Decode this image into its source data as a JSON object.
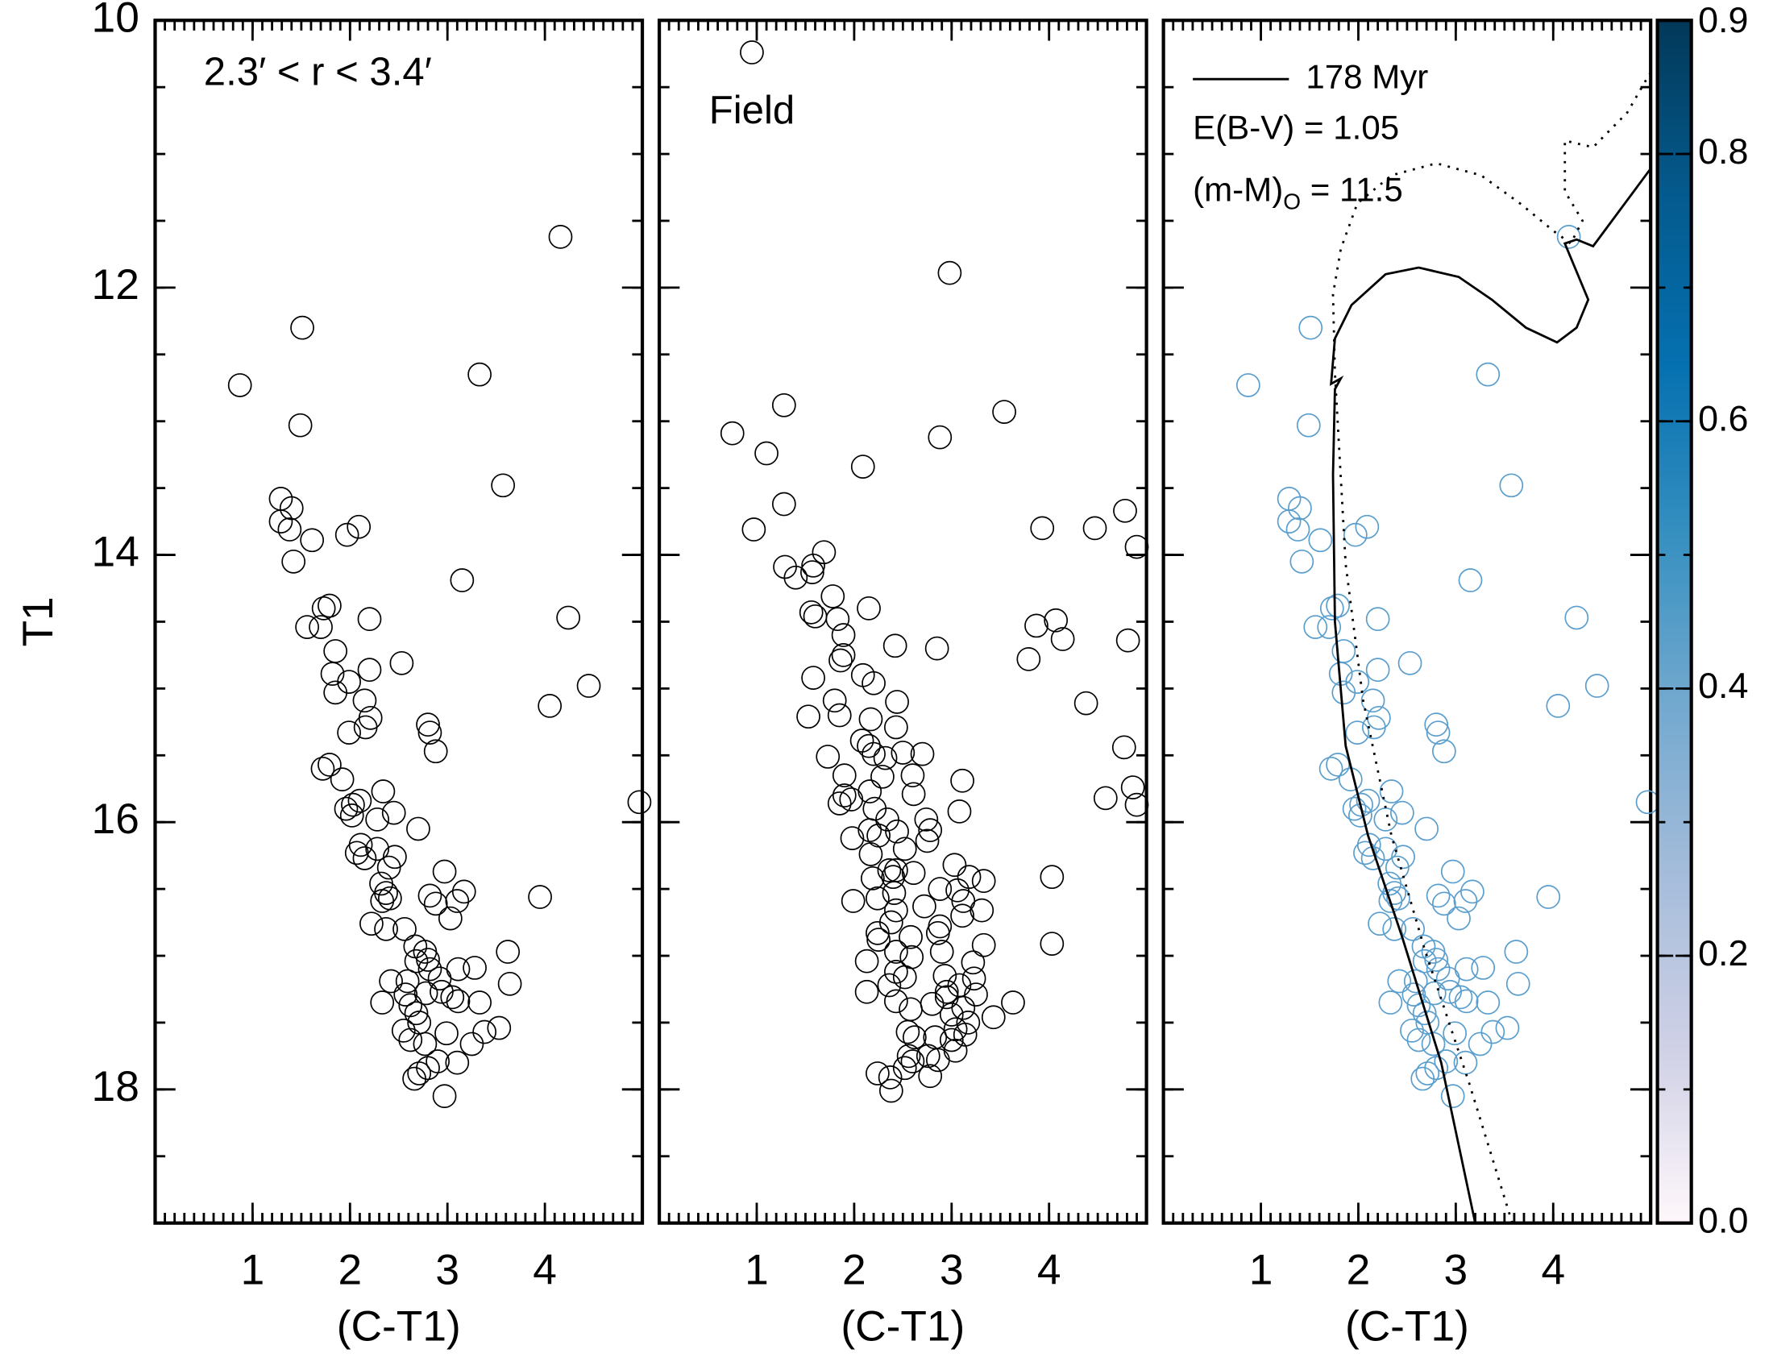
{
  "chart_data": [
    {
      "type": "scatter",
      "label": "2.3′ < r < 3.4′",
      "xlabel": "(C-T1)",
      "ylabel": "T1",
      "xlim": [
        0,
        5
      ],
      "ylim": [
        19,
        10
      ],
      "xticks": [
        1,
        2,
        3,
        4
      ],
      "yticks": [
        10,
        12,
        14,
        16,
        18
      ],
      "xminor": 0.1,
      "yminor": 0.5,
      "color": "#000000",
      "x": [
        0.87,
        1.51,
        1.49,
        1.29,
        1.4,
        1.29,
        1.38,
        1.42,
        1.61,
        2.09,
        1.97,
        1.79,
        1.73,
        1.56,
        1.7,
        2.2,
        1.85,
        1.82,
        1.99,
        1.85,
        2.53,
        2.2,
        2.15,
        2.21,
        2.16,
        1.99,
        2.8,
        2.82,
        2.88,
        1.79,
        1.72,
        1.92,
        2.34,
        2.1,
        2.03,
        1.96,
        2.02,
        2.45,
        2.28,
        2.7,
        2.11,
        2.07,
        2.15,
        2.28,
        2.46,
        2.4,
        2.97,
        2.32,
        2.37,
        2.33,
        2.41,
        2.82,
        3.1,
        3.17,
        3.03,
        2.88,
        2.22,
        2.37,
        2.56,
        2.67,
        2.77,
        2.8,
        2.68,
        2.82,
        3.62,
        3.95,
        3.11,
        3.28,
        2.92,
        2.59,
        2.42,
        2.33,
        2.57,
        2.62,
        2.78,
        3.05,
        3.11,
        3.33,
        3.64,
        2.94,
        2.68,
        2.71,
        2.55,
        2.77,
        2.62,
        2.99,
        3.25,
        3.38,
        3.53,
        2.9,
        3.1,
        2.71,
        2.8,
        2.66,
        2.97,
        3.33,
        3.57,
        4.16,
        3.15,
        4.24,
        4.45,
        4.05,
        4.97
      ],
      "y": [
        12.73,
        12.3,
        13.03,
        13.58,
        13.65,
        13.75,
        13.81,
        14.05,
        13.89,
        13.79,
        13.85,
        14.38,
        14.4,
        14.54,
        14.54,
        14.48,
        14.72,
        14.89,
        14.95,
        15.03,
        14.81,
        14.86,
        15.09,
        15.22,
        15.29,
        15.33,
        15.27,
        15.33,
        15.47,
        15.57,
        15.6,
        15.68,
        15.77,
        15.84,
        15.87,
        15.9,
        15.95,
        15.93,
        15.98,
        16.05,
        16.17,
        16.23,
        16.27,
        16.2,
        16.26,
        16.34,
        16.37,
        16.46,
        16.53,
        16.59,
        16.57,
        16.55,
        16.59,
        16.52,
        16.72,
        16.61,
        16.76,
        16.8,
        16.8,
        16.93,
        16.97,
        17.03,
        17.04,
        17.1,
        16.97,
        16.56,
        17.1,
        17.09,
        17.17,
        17.19,
        17.19,
        17.35,
        17.29,
        17.37,
        17.28,
        17.31,
        17.34,
        17.35,
        17.21,
        17.27,
        17.43,
        17.5,
        17.56,
        17.66,
        17.63,
        17.58,
        17.66,
        17.57,
        17.54,
        17.79,
        17.8,
        17.88,
        17.84,
        17.92,
        18.05,
        12.65,
        13.48,
        11.62,
        14.19,
        14.47,
        14.98,
        15.13,
        15.85
      ]
    },
    {
      "type": "scatter",
      "label": "Field",
      "xlabel": "(C-T1)",
      "xlim": [
        0,
        5
      ],
      "ylim": [
        19,
        10
      ],
      "xticks": [
        1,
        2,
        3,
        4
      ],
      "yticks": [
        10,
        12,
        14,
        16,
        18
      ],
      "xminor": 0.1,
      "yminor": 0.5,
      "color": "#000000",
      "x": [
        0.95,
        2.98,
        0.75,
        1.1,
        1.28,
        3.54,
        2.88,
        2.09,
        1.28,
        0.97,
        1.29,
        1.4,
        1.58,
        1.57,
        1.69,
        1.78,
        1.56,
        1.6,
        1.83,
        2.15,
        2.42,
        1.89,
        1.58,
        1.86,
        1.89,
        2.09,
        2.2,
        1.8,
        1.53,
        1.85,
        2.44,
        2.85,
        2.17,
        2.43,
        2.08,
        2.15,
        2.2,
        2.5,
        2.7,
        1.9,
        1.73,
        2.32,
        2.29,
        2.6,
        3.11,
        2.61,
        1.9,
        1.97,
        1.85,
        2.16,
        2.21,
        2.34,
        2.16,
        1.98,
        2.25,
        2.74,
        2.78,
        2.75,
        3.08,
        2.44,
        2.52,
        2.17,
        2.4,
        2.19,
        2.41,
        2.61,
        2.36,
        2.43,
        3.03,
        3.18,
        3.33,
        3.06,
        1.99,
        2.24,
        2.43,
        2.88,
        3.12,
        3.31,
        3.11,
        2.72,
        2.38,
        2.24,
        2.58,
        2.86,
        2.88,
        2.25,
        2.43,
        2.13,
        2.59,
        2.9,
        3.33,
        3.22,
        2.43,
        2.13,
        2.52,
        2.36,
        2.93,
        3.23,
        3.08,
        2.95,
        3.25,
        2.8,
        2.95,
        2.43,
        2.58,
        3.12,
        3.63,
        3.43,
        3.0,
        3.17,
        3.04,
        2.55,
        2.62,
        2.83,
        3.0,
        3.14,
        2.76,
        3.04,
        2.56,
        2.6,
        2.86,
        2.24,
        2.52,
        2.78,
        2.37,
        2.38,
        3.87,
        3.79,
        4.14,
        3.93,
        4.07,
        4.47,
        4.78,
        4.9,
        4.38,
        4.81,
        4.77,
        4.58,
        4.86,
        4.9,
        4.03,
        4.03
      ],
      "y": [
        10.24,
        11.89,
        13.09,
        13.24,
        12.88,
        12.93,
        13.12,
        13.34,
        13.62,
        13.81,
        14.09,
        14.17,
        14.08,
        14.13,
        13.98,
        14.31,
        14.43,
        14.46,
        14.48,
        14.4,
        14.68,
        14.6,
        14.92,
        14.79,
        14.75,
        14.9,
        14.96,
        15.09,
        15.21,
        15.2,
        15.1,
        14.7,
        15.23,
        15.29,
        15.39,
        15.43,
        15.49,
        15.48,
        15.49,
        15.65,
        15.51,
        15.52,
        15.66,
        15.65,
        15.69,
        15.79,
        15.8,
        15.83,
        15.86,
        15.77,
        15.9,
        15.98,
        16.06,
        16.12,
        16.1,
        15.98,
        16.06,
        16.14,
        15.92,
        16.07,
        16.2,
        16.24,
        16.41,
        16.42,
        16.53,
        16.38,
        16.36,
        16.36,
        16.32,
        16.41,
        16.44,
        16.51,
        16.59,
        16.57,
        16.66,
        16.5,
        16.59,
        16.66,
        16.7,
        16.63,
        16.75,
        16.83,
        16.86,
        16.83,
        16.78,
        16.88,
        16.97,
        17.04,
        17.01,
        16.97,
        16.92,
        17.05,
        17.12,
        17.27,
        17.16,
        17.22,
        17.15,
        17.17,
        17.22,
        17.27,
        17.29,
        17.36,
        17.31,
        17.34,
        17.4,
        17.39,
        17.35,
        17.46,
        17.44,
        17.5,
        17.55,
        17.57,
        17.61,
        17.61,
        17.63,
        17.59,
        17.75,
        17.71,
        17.75,
        17.79,
        17.78,
        17.88,
        17.84,
        17.9,
        17.91,
        18.01,
        14.53,
        14.78,
        14.63,
        13.8,
        14.49,
        13.8,
        13.67,
        13.94,
        15.11,
        14.64,
        15.44,
        15.82,
        15.74,
        15.87,
        16.41,
        16.91
      ]
    },
    {
      "type": "scatter",
      "xlabel": "(C-T1)",
      "xlim": [
        0,
        5
      ],
      "ylim": [
        19,
        10
      ],
      "xticks": [
        1,
        2,
        3,
        4
      ],
      "yticks": [
        10,
        12,
        14,
        16,
        18
      ],
      "xminor": 0.1,
      "yminor": 0.5,
      "color": "#5a9ecd",
      "x": [
        0.87,
        1.51,
        1.49,
        1.29,
        1.4,
        1.29,
        1.38,
        1.42,
        1.61,
        2.09,
        1.97,
        1.79,
        1.73,
        1.56,
        1.7,
        2.2,
        1.85,
        1.82,
        1.99,
        1.85,
        2.53,
        2.2,
        2.15,
        2.21,
        2.16,
        1.99,
        2.8,
        2.82,
        2.88,
        1.79,
        1.72,
        1.92,
        2.34,
        2.1,
        2.03,
        1.96,
        2.02,
        2.45,
        2.28,
        2.7,
        2.11,
        2.07,
        2.15,
        2.28,
        2.46,
        2.4,
        2.97,
        2.32,
        2.37,
        2.33,
        2.41,
        2.82,
        3.1,
        3.17,
        3.03,
        2.88,
        2.22,
        2.37,
        2.56,
        2.67,
        2.77,
        2.8,
        2.68,
        2.82,
        3.62,
        3.95,
        3.11,
        3.28,
        2.92,
        2.59,
        2.42,
        2.33,
        2.57,
        2.62,
        2.78,
        3.05,
        3.11,
        3.33,
        3.64,
        2.94,
        2.68,
        2.71,
        2.55,
        2.77,
        2.62,
        2.99,
        3.25,
        3.38,
        3.53,
        2.9,
        3.1,
        2.71,
        2.8,
        2.66,
        2.97,
        3.33,
        3.57,
        4.16,
        3.15,
        4.24,
        4.45,
        4.05,
        4.97
      ],
      "y": [
        12.73,
        12.3,
        13.03,
        13.58,
        13.65,
        13.75,
        13.81,
        14.05,
        13.89,
        13.79,
        13.85,
        14.38,
        14.4,
        14.54,
        14.54,
        14.48,
        14.72,
        14.89,
        14.95,
        15.03,
        14.81,
        14.86,
        15.09,
        15.22,
        15.29,
        15.33,
        15.27,
        15.33,
        15.47,
        15.57,
        15.6,
        15.68,
        15.77,
        15.84,
        15.87,
        15.9,
        15.95,
        15.93,
        15.98,
        16.05,
        16.17,
        16.23,
        16.27,
        16.2,
        16.26,
        16.34,
        16.37,
        16.46,
        16.53,
        16.59,
        16.57,
        16.55,
        16.59,
        16.52,
        16.72,
        16.61,
        16.76,
        16.8,
        16.8,
        16.93,
        16.97,
        17.03,
        17.04,
        17.1,
        16.97,
        16.56,
        17.1,
        17.09,
        17.17,
        17.19,
        17.19,
        17.35,
        17.29,
        17.37,
        17.28,
        17.31,
        17.34,
        17.35,
        17.21,
        17.27,
        17.43,
        17.5,
        17.56,
        17.66,
        17.63,
        17.58,
        17.66,
        17.57,
        17.54,
        17.79,
        17.8,
        17.88,
        17.84,
        17.92,
        18.05,
        12.65,
        13.48,
        11.62,
        14.19,
        14.47,
        14.98,
        15.13,
        15.85
      ],
      "lines": [
        {
          "name": "178 Myr",
          "style": "solid",
          "x": [
            3.2,
            2.85,
            2.45,
            2.1,
            1.87,
            1.76,
            1.74,
            1.76,
            1.82,
            1.72,
            1.76,
            1.93,
            2.28,
            2.62,
            3.03,
            3.37,
            3.72,
            4.04,
            4.24,
            4.36,
            4.12,
            4.24,
            4.41,
            4.99
          ],
          "y": [
            19.0,
            17.8,
            16.86,
            16.1,
            15.43,
            14.5,
            13.4,
            12.76,
            12.68,
            12.72,
            12.38,
            12.13,
            11.9,
            11.85,
            11.92,
            12.09,
            12.3,
            12.41,
            12.3,
            12.09,
            11.67,
            11.64,
            11.69,
            11.12
          ]
        },
        {
          "style": "dotted",
          "x": [
            3.58,
            3.14,
            2.68,
            2.34,
            2.05,
            1.87,
            1.76,
            1.74,
            1.82,
            1.99,
            2.34,
            2.8,
            3.26,
            3.66,
            4.01,
            4.18,
            4.3,
            4.12,
            4.12,
            4.41,
            4.76,
            4.99
          ],
          "y": [
            19.0,
            17.96,
            16.95,
            16.1,
            15.09,
            14.07,
            12.64,
            12.05,
            11.71,
            11.37,
            11.16,
            11.07,
            11.16,
            11.37,
            11.58,
            11.67,
            11.5,
            11.28,
            10.9,
            10.95,
            10.69,
            10.4
          ]
        }
      ],
      "annotations": [
        "E(B-V) = 1.05",
        {
          "text": "(m-M)",
          "subscript": "O",
          "suffix": " = 11.5"
        }
      ],
      "colorbar": {
        "ylim": [
          0,
          0.9
        ],
        "yticks": [
          {
            "value": 0,
            "label": "0.0"
          },
          0.2,
          0.4,
          0.6,
          0.8,
          0.9
        ],
        "yminor": 0.1,
        "colors": [
          "#fff7fb",
          "#d0d1e6",
          "#a6bddb",
          "#74a9cf",
          "#3690c0",
          "#0570b0",
          "#045a8d",
          "#023858"
        ]
      }
    }
  ]
}
